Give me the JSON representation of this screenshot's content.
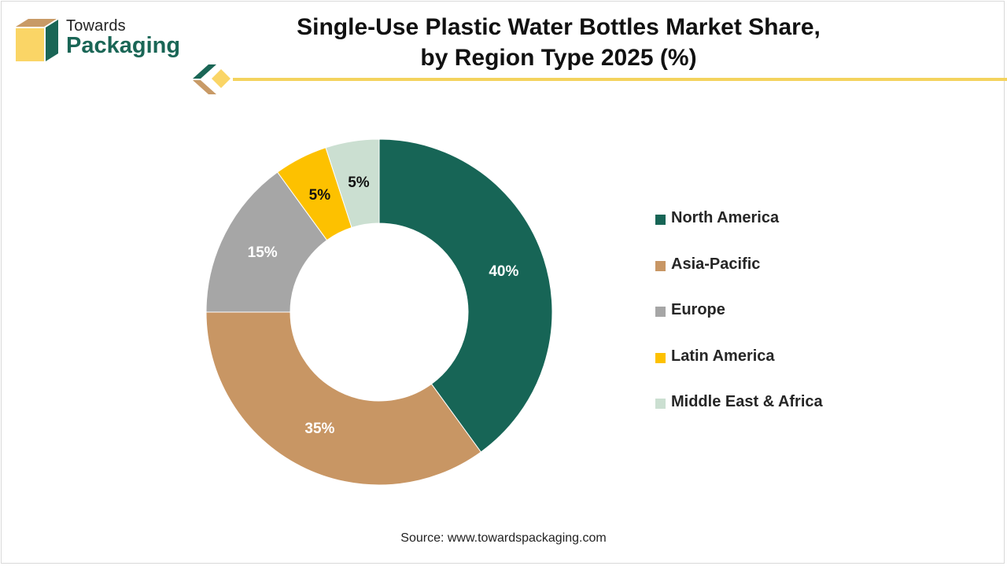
{
  "brand": {
    "line1": "Towards",
    "line2": "Packaging",
    "colors": {
      "green": "#1a6656",
      "tan": "#c89a66",
      "yellow": "#fad566"
    }
  },
  "title": {
    "line1": "Single-Use Plastic Water Bottles Market Share,",
    "line2": "by Region Type 2025 (%)"
  },
  "source": "Source: www.towardspackaging.com",
  "chart_data": {
    "type": "pie",
    "donut": true,
    "title": "Single-Use Plastic Water Bottles Market Share, by Region Type 2025 (%)",
    "legend_position": "right",
    "categories": [
      "North America",
      "Asia-Pacific",
      "Europe",
      "Latin America",
      "Middle East & Africa"
    ],
    "values": [
      40,
      35,
      15,
      5,
      5
    ],
    "labels": [
      "40%",
      "35%",
      "15%",
      "5%",
      "5%"
    ],
    "colors": [
      "#176556",
      "#c89664",
      "#a6a6a6",
      "#fdc100",
      "#cbdfd1"
    ]
  }
}
